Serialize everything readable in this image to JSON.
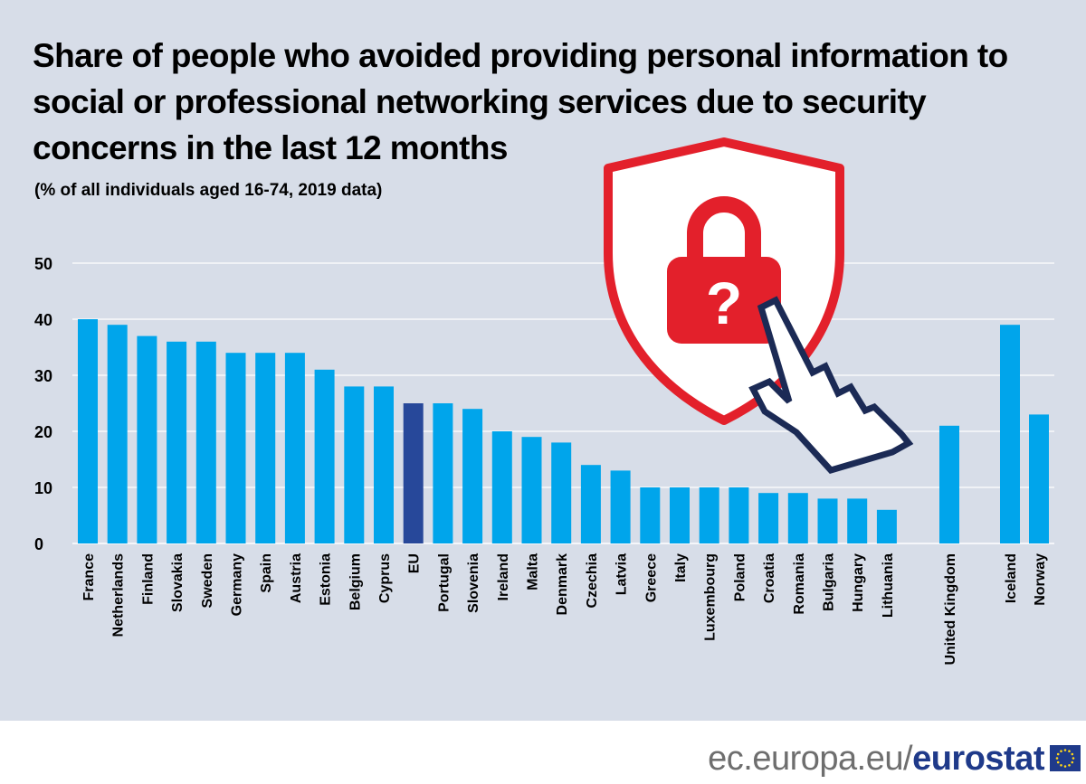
{
  "chart_data": {
    "type": "bar",
    "title": "Share of people who avoided providing personal information to social or professional networking services due to security concerns in the last 12 months",
    "subtitle": "(% of all individuals aged 16-74, 2019 data)",
    "categories": [
      "France",
      "Netherlands",
      "Finland",
      "Slovakia",
      "Sweden",
      "Germany",
      "Spain",
      "Austria",
      "Estonia",
      "Belgium",
      "Cyprus",
      "EU",
      "Portugal",
      "Slovenia",
      "Ireland",
      "Malta",
      "Denmark",
      "Czechia",
      "Latvia",
      "Greece",
      "Italy",
      "Luxembourg",
      "Poland",
      "Croatia",
      "Romania",
      "Bulgaria",
      "Hungary",
      "Lithuania",
      "United Kingdom",
      "Iceland",
      "Norway"
    ],
    "values": [
      40,
      39,
      37,
      36,
      36,
      34,
      34,
      34,
      31,
      28,
      28,
      25,
      25,
      24,
      20,
      19,
      18,
      14,
      13,
      10,
      10,
      10,
      10,
      9,
      9,
      8,
      8,
      6,
      21,
      39,
      23
    ],
    "highlight": "EU",
    "ylim": [
      0,
      50
    ],
    "yticks": [
      0,
      10,
      20,
      30,
      40,
      50
    ],
    "grid": true,
    "legend": "none",
    "colors": {
      "bar": "#00a5eb",
      "highlight": "#27489a",
      "grid": "#ffffff",
      "background": "#d7dde8"
    }
  },
  "illustration": {
    "icon": "shield-padlock-cursor-icon",
    "symbol": "?"
  },
  "footer": {
    "url_prefix": "ec.europa.eu/",
    "brand": "eurostat",
    "logo": "eu-flag-icon"
  }
}
